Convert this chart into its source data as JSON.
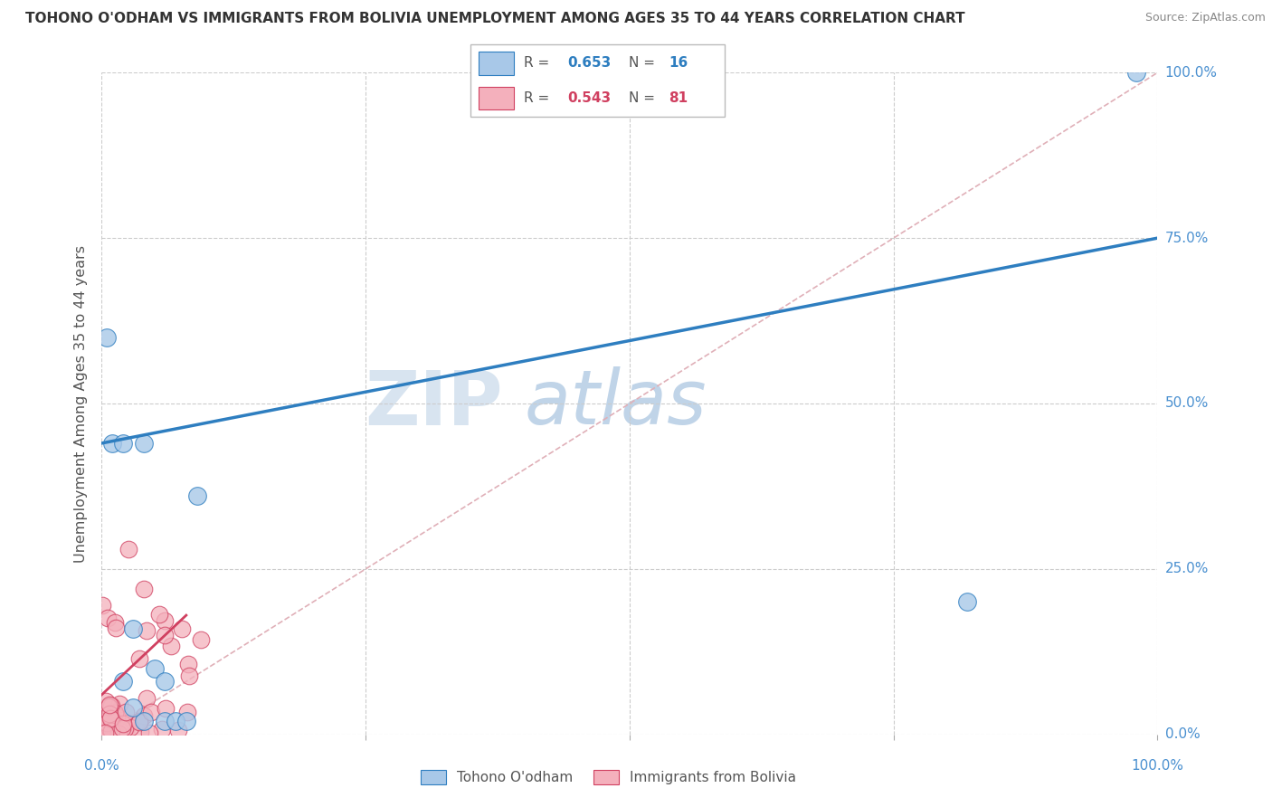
{
  "title": "TOHONO O'ODHAM VS IMMIGRANTS FROM BOLIVIA UNEMPLOYMENT AMONG AGES 35 TO 44 YEARS CORRELATION CHART",
  "source": "Source: ZipAtlas.com",
  "ylabel": "Unemployment Among Ages 35 to 44 years",
  "legend_label_1": "Tohono O'odham",
  "legend_label_2": "Immigrants from Bolivia",
  "r1": 0.653,
  "n1": 16,
  "r2": 0.543,
  "n2": 81,
  "color1": "#a8c8e8",
  "color2": "#f4b0bc",
  "regression_color1": "#2e7ec0",
  "regression_color2": "#d04060",
  "diagonal_color": "#e0b0b8",
  "watermark_zip_color": "#d8e4f0",
  "watermark_atlas_color": "#c0d4e8",
  "xlim": [
    0,
    1.0
  ],
  "ylim": [
    0,
    1.0
  ],
  "xticks": [
    0,
    0.25,
    0.5,
    0.75,
    1.0
  ],
  "yticks": [
    0,
    0.25,
    0.5,
    0.75,
    1.0
  ],
  "xticklabels": [
    "0.0%",
    "",
    "",
    "",
    "100.0%"
  ],
  "yticklabels_right": [
    "0.0%",
    "25.0%",
    "50.0%",
    "75.0%",
    "100.0%"
  ],
  "blue_line_x": [
    0.0,
    1.0
  ],
  "blue_line_y": [
    0.44,
    0.75
  ],
  "pink_line_x": [
    0.0,
    0.08
  ],
  "pink_line_y": [
    0.06,
    0.18
  ],
  "background_color": "#ffffff",
  "grid_color": "#cccccc",
  "tick_color": "#4a90d0",
  "title_color": "#333333",
  "source_color": "#888888"
}
